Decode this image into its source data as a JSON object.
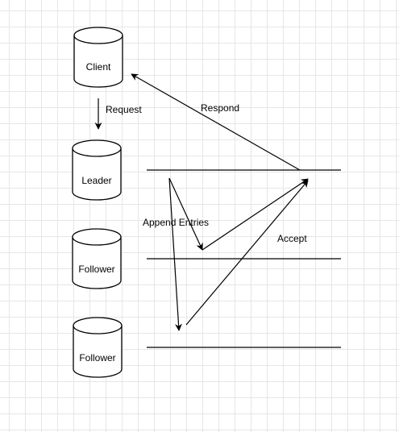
{
  "nodes": {
    "client": "Client",
    "leader": "Leader",
    "follower_1": "Follower",
    "follower_2": "Follower"
  },
  "labels": {
    "request": "Request",
    "respond": "Respond",
    "append_entries": "Append Entries",
    "accept": "Accept"
  },
  "colors": {
    "stroke": "#000000",
    "fill": "#ffffff",
    "grid": "#e6e6e6"
  }
}
